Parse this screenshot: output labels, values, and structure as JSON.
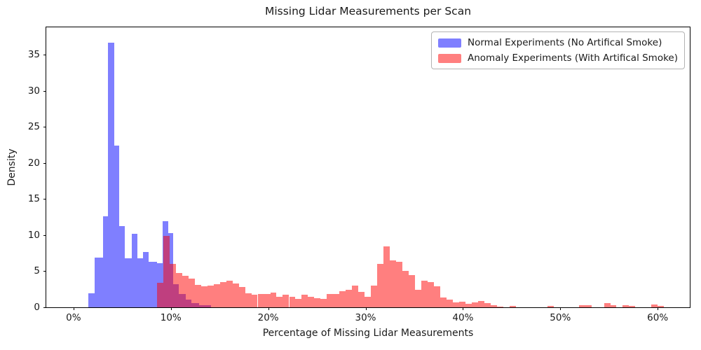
{
  "figure": {
    "title": "Missing Lidar Measurements per Scan",
    "xlabel": "Percentage of Missing Lidar Measurements",
    "ylabel": "Density"
  },
  "legend": {
    "items": [
      {
        "label": "Normal Experiments (No Artifical Smoke)",
        "color": "rgba(0,0,255,0.5)",
        "color_hex": "#8080ff"
      },
      {
        "label": "Anomaly Experiments (With Artifical Smoke)",
        "color": "rgba(255,0,0,0.5)",
        "color_hex": "#ff8080"
      }
    ]
  },
  "axes": {
    "x_range": [
      -2.8,
      63.3
    ],
    "y_range": [
      0,
      38.8
    ],
    "x_ticks": [
      {
        "value": 0,
        "label": "0%"
      },
      {
        "value": 10,
        "label": "10%"
      },
      {
        "value": 20,
        "label": "20%"
      },
      {
        "value": 30,
        "label": "30%"
      },
      {
        "value": 40,
        "label": "40%"
      },
      {
        "value": 50,
        "label": "50%"
      },
      {
        "value": 60,
        "label": "60%"
      }
    ],
    "y_ticks": [
      {
        "value": 0,
        "label": "0"
      },
      {
        "value": 5,
        "label": "5"
      },
      {
        "value": 10,
        "label": "10"
      },
      {
        "value": 15,
        "label": "15"
      },
      {
        "value": 20,
        "label": "20"
      },
      {
        "value": 25,
        "label": "25"
      },
      {
        "value": 30,
        "label": "30"
      },
      {
        "value": 35,
        "label": "35"
      }
    ]
  },
  "chart_data": {
    "type": "bar",
    "subtype": "overlaid-histograms",
    "title": "Missing Lidar Measurements per Scan",
    "xlabel": "Percentage of Missing Lidar Measurements",
    "ylabel": "Density",
    "xlim": [
      -2.8,
      63.3
    ],
    "ylim": [
      0,
      38.8
    ],
    "grid": false,
    "legend_position": "upper right",
    "bar_format": "[start_percent, end_percent, density]",
    "series": [
      {
        "name": "Normal Experiments (No Artifical Smoke)",
        "color": "rgba(0,0,255,0.5)",
        "bars": [
          [
            1.55,
            2.15,
            1.9
          ],
          [
            2.15,
            3.0,
            6.9
          ],
          [
            3.0,
            3.57,
            12.6
          ],
          [
            3.57,
            4.15,
            36.7
          ],
          [
            4.15,
            4.72,
            22.4
          ],
          [
            4.72,
            5.3,
            11.3
          ],
          [
            5.3,
            6.01,
            6.8
          ],
          [
            6.01,
            6.59,
            10.2
          ],
          [
            6.59,
            7.16,
            6.8
          ],
          [
            7.16,
            7.74,
            7.7
          ],
          [
            7.74,
            8.6,
            6.3
          ],
          [
            8.6,
            9.17,
            6.1
          ],
          [
            9.17,
            9.75,
            11.9
          ],
          [
            9.75,
            10.2,
            10.3
          ],
          [
            10.2,
            10.83,
            3.2
          ],
          [
            10.83,
            11.5,
            1.8
          ],
          [
            11.5,
            12.12,
            1.1
          ],
          [
            12.12,
            12.9,
            0.6
          ],
          [
            12.9,
            14.1,
            0.25
          ]
        ]
      },
      {
        "name": "Anomaly Experiments (With Artifical Smoke)",
        "color": "rgba(255,0,0,0.5)",
        "bars": [
          [
            8.57,
            9.21,
            3.4
          ],
          [
            9.21,
            9.86,
            9.9
          ],
          [
            9.86,
            10.51,
            6.0
          ],
          [
            10.51,
            11.15,
            4.8
          ],
          [
            11.15,
            11.8,
            4.35
          ],
          [
            11.8,
            12.45,
            4.0
          ],
          [
            12.45,
            13.09,
            3.1
          ],
          [
            13.09,
            13.74,
            2.9
          ],
          [
            13.74,
            14.39,
            3.0
          ],
          [
            14.39,
            15.03,
            3.2
          ],
          [
            15.03,
            15.68,
            3.5
          ],
          [
            15.68,
            16.33,
            3.7
          ],
          [
            16.33,
            16.97,
            3.3
          ],
          [
            16.97,
            17.62,
            2.8
          ],
          [
            17.62,
            18.27,
            1.9
          ],
          [
            18.27,
            18.91,
            1.75
          ],
          [
            18.91,
            19.56,
            1.85
          ],
          [
            19.56,
            20.21,
            1.8
          ],
          [
            20.21,
            20.85,
            2.0
          ],
          [
            20.85,
            21.5,
            1.5
          ],
          [
            21.5,
            22.15,
            1.7
          ],
          [
            22.15,
            22.79,
            1.5
          ],
          [
            22.79,
            23.44,
            1.15
          ],
          [
            23.44,
            24.09,
            1.7
          ],
          [
            24.09,
            24.73,
            1.45
          ],
          [
            24.73,
            25.38,
            1.3
          ],
          [
            25.38,
            26.03,
            1.15
          ],
          [
            26.03,
            26.67,
            1.85
          ],
          [
            26.67,
            27.32,
            1.8
          ],
          [
            27.32,
            27.97,
            2.25
          ],
          [
            27.97,
            28.61,
            2.4
          ],
          [
            28.61,
            29.26,
            3.0
          ],
          [
            29.26,
            29.91,
            2.1
          ],
          [
            29.91,
            30.55,
            1.5
          ],
          [
            30.55,
            31.2,
            3.0
          ],
          [
            31.2,
            31.85,
            6.0
          ],
          [
            31.85,
            32.49,
            8.4
          ],
          [
            32.49,
            33.14,
            6.5
          ],
          [
            33.14,
            33.79,
            6.3
          ],
          [
            33.79,
            34.43,
            5.0
          ],
          [
            34.43,
            35.08,
            4.5
          ],
          [
            35.08,
            35.73,
            2.4
          ],
          [
            35.73,
            36.37,
            3.7
          ],
          [
            36.37,
            37.02,
            3.5
          ],
          [
            37.02,
            37.67,
            2.9
          ],
          [
            37.67,
            38.31,
            1.35
          ],
          [
            38.31,
            38.96,
            1.05
          ],
          [
            38.96,
            39.61,
            0.7
          ],
          [
            39.61,
            40.25,
            0.75
          ],
          [
            40.25,
            40.9,
            0.5
          ],
          [
            40.9,
            41.55,
            0.65
          ],
          [
            41.55,
            42.19,
            0.9
          ],
          [
            42.19,
            42.84,
            0.55
          ],
          [
            42.84,
            43.49,
            0.25
          ],
          [
            43.49,
            44.13,
            0.1
          ],
          [
            44.78,
            45.42,
            0.15
          ],
          [
            48.66,
            49.31,
            0.15
          ],
          [
            51.9,
            52.55,
            0.3
          ],
          [
            52.55,
            53.19,
            0.3
          ],
          [
            54.48,
            55.13,
            0.55
          ],
          [
            55.13,
            55.77,
            0.3
          ],
          [
            56.42,
            57.07,
            0.25
          ],
          [
            57.07,
            57.71,
            0.2
          ],
          [
            59.36,
            60.01,
            0.35
          ],
          [
            60.01,
            60.65,
            0.15
          ]
        ]
      }
    ]
  }
}
